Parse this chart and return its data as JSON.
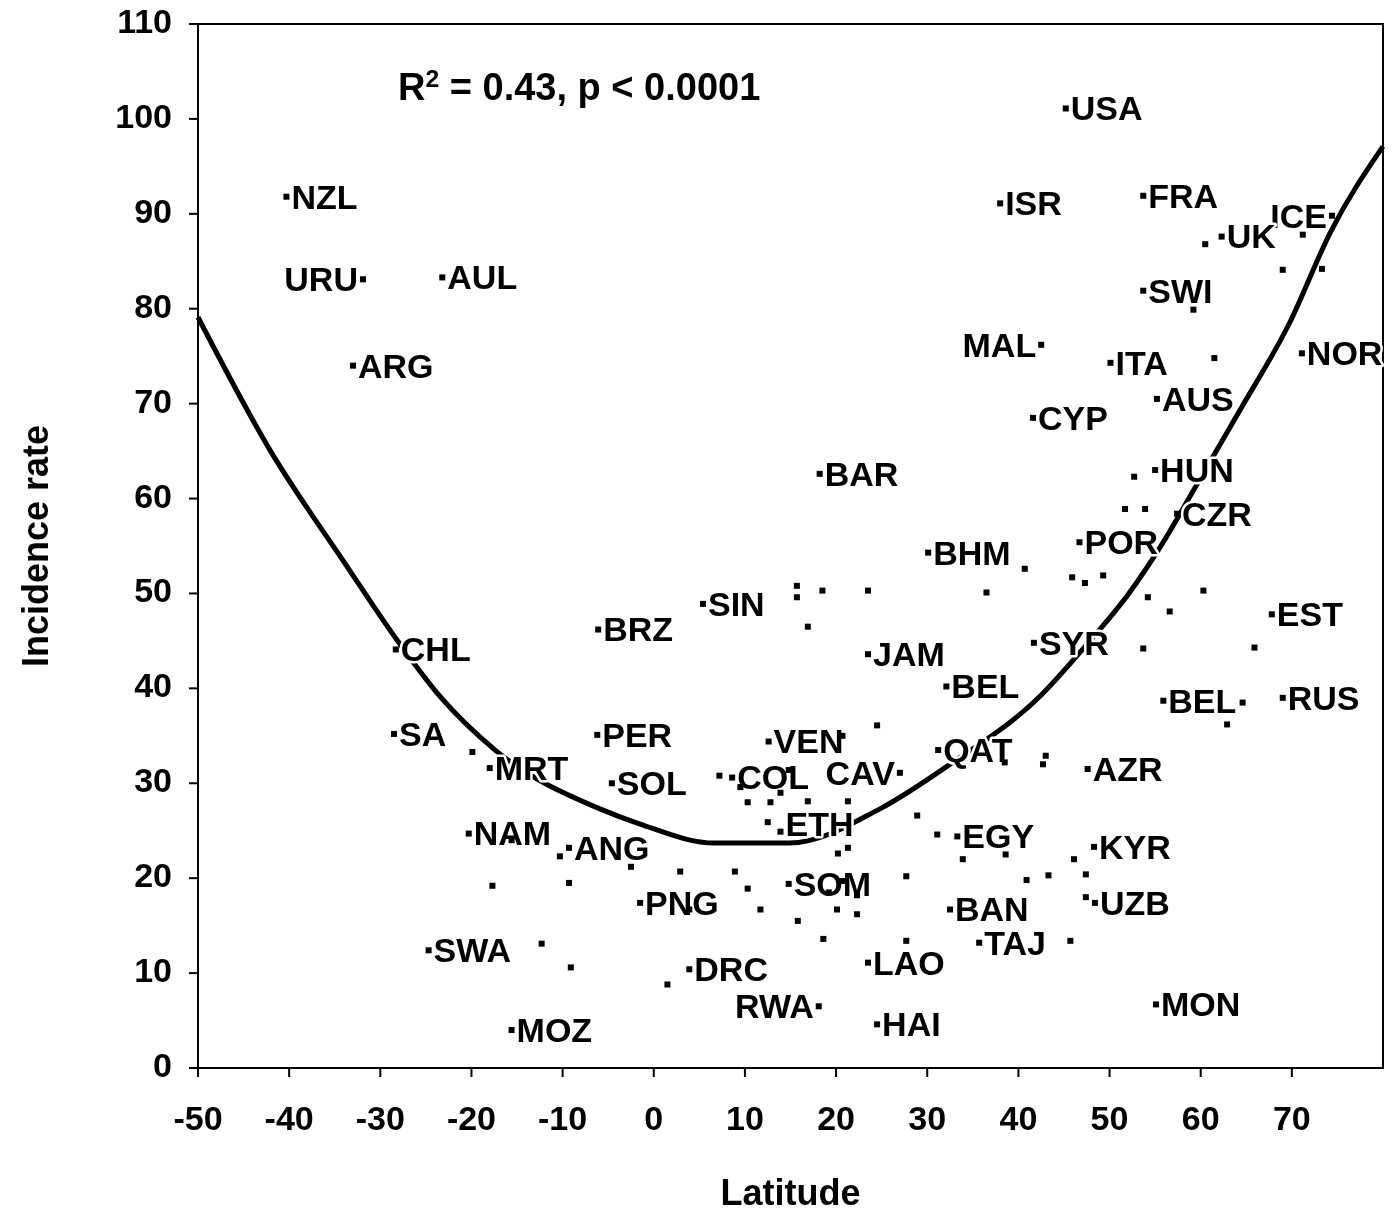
{
  "chart_data": {
    "type": "scatter",
    "xlabel": "Latitude",
    "ylabel": "Incidence rate",
    "xlim": [
      -50,
      80
    ],
    "ylim": [
      0,
      110
    ],
    "xticks": [
      -50,
      -40,
      -30,
      -20,
      -10,
      0,
      10,
      20,
      30,
      40,
      50,
      60,
      70
    ],
    "yticks": [
      0,
      10,
      20,
      30,
      40,
      50,
      60,
      70,
      80,
      90,
      100,
      110
    ],
    "grid": false,
    "marker": "square",
    "series": [
      {
        "color": "#000000",
        "x": [
          -40.3,
          -31.9,
          -23.2,
          -33.0,
          45.2,
          38.0,
          53.7,
          74.4,
          71.2,
          62.3,
          60.5,
          53.7,
          59.2,
          69.0,
          73.3,
          42.5,
          50.1,
          61.5,
          71.1,
          55.2,
          41.6,
          55.0,
          52.7,
          57.4,
          51.7,
          53.9,
          18.2,
          30.1,
          40.7,
          46.7,
          45.9,
          47.3,
          49.3,
          5.4,
          15.7,
          15.7,
          18.5,
          23.5,
          36.5,
          54.2,
          60.3,
          56.6,
          -6.1,
          16.9,
          67.8,
          23.5,
          41.7,
          53.7,
          65.9,
          -28.3,
          32.1,
          55.9,
          64.6,
          62.9,
          69.0,
          -28.5,
          -19.9,
          -18.0,
          -6.2,
          12.6,
          24.5,
          20.7,
          31.2,
          38.5,
          42.7,
          43.0,
          47.6,
          -4.6,
          8.6,
          7.2,
          9.5,
          14.8,
          13.9,
          10.3,
          12.8,
          16.9,
          21.3,
          27.0,
          13.9,
          12.5,
          21.3,
          28.9,
          31.1,
          33.3,
          33.9,
          38.6,
          46.1,
          48.3,
          -9.3,
          -10.3,
          -2.5,
          -9.3,
          -17.7,
          -20.3,
          -15.6,
          -1.5,
          2.9,
          8.9,
          10.3,
          11.7,
          3.9,
          14.8,
          20.2,
          20.7,
          19.2,
          22.3,
          20.1,
          22.3,
          27.7,
          15.8,
          18.6,
          18.1,
          32.5,
          40.9,
          43.3,
          23.5,
          27.7,
          35.7,
          45.7,
          24.5,
          3.9,
          1.5,
          -15.6,
          -24.7,
          -12.3,
          -9.1,
          48.4,
          47.4,
          47.4,
          55.1
        ],
        "values": [
          91.8,
          83.1,
          83.3,
          74.0,
          101.1,
          91.1,
          91.9,
          89.8,
          87.8,
          87.6,
          86.8,
          81.9,
          79.9,
          84.1,
          84.2,
          76.2,
          74.3,
          74.8,
          75.3,
          70.5,
          68.5,
          63.0,
          62.3,
          58.4,
          58.9,
          58.9,
          62.6,
          54.3,
          52.6,
          55.4,
          51.7,
          51.1,
          51.9,
          48.9,
          50.8,
          49.6,
          50.3,
          50.3,
          50.1,
          49.6,
          50.3,
          48.1,
          46.2,
          46.5,
          47.8,
          43.6,
          44.8,
          44.2,
          44.3,
          44.1,
          40.2,
          38.7,
          38.5,
          36.2,
          39.0,
          35.2,
          33.3,
          31.6,
          35.1,
          34.4,
          36.1,
          35.0,
          33.5,
          32.2,
          32.0,
          32.9,
          31.5,
          30.0,
          30.6,
          30.8,
          29.6,
          31.4,
          29.0,
          28.0,
          28.0,
          28.1,
          28.1,
          31.1,
          24.9,
          25.9,
          23.2,
          26.6,
          24.6,
          24.4,
          22.0,
          22.5,
          22.0,
          23.3,
          23.2,
          22.3,
          21.2,
          19.5,
          19.2,
          24.7,
          24.0,
          17.4,
          20.7,
          20.7,
          18.9,
          16.7,
          16.7,
          19.4,
          22.6,
          19.7,
          18.5,
          18.2,
          16.7,
          16.2,
          20.2,
          15.5,
          13.6,
          6.5,
          16.7,
          19.8,
          20.3,
          11.1,
          13.4,
          13.2,
          13.4,
          4.6,
          10.4,
          8.8,
          4.0,
          12.4,
          13.1,
          10.6,
          17.4,
          18.0,
          20.4,
          6.7
        ]
      },
      {
        "type": "line",
        "color": "#000000",
        "marker": "none",
        "line_style": "solid",
        "x": [
          -50,
          -42.1,
          -33.9,
          -28.4,
          -23.5,
          -17.4,
          -5.9,
          -1.5,
          6.7,
          14.9,
          24.8,
          32.5,
          42.4,
          47.3,
          52.2,
          55.5,
          59.9,
          64.3,
          69.8,
          74.2,
          80
        ],
        "values": [
          79.1,
          65.1,
          53.2,
          45.4,
          39.2,
          33.5,
          27.3,
          25.7,
          23.7,
          23.7,
          27.3,
          32.0,
          39.2,
          44.4,
          50.1,
          54.8,
          62.0,
          69.3,
          78.6,
          88.0,
          97.1
        ]
      }
    ],
    "annotations": [
      "R$^{2}$ = 0.43, p < 0.0001",
      {
        "text": "NZL",
        "x": -40.3,
        "y": 91.8
      },
      {
        "text": "URU",
        "x": -31.9,
        "y": 83.1
      },
      {
        "text": "AUL",
        "x": -23.2,
        "y": 83.3
      },
      {
        "text": "ARG",
        "x": -33.0,
        "y": 74.0
      },
      {
        "text": "USA",
        "x": 45.2,
        "y": 101.1
      },
      {
        "text": "ISR",
        "x": 38.0,
        "y": 91.1
      },
      {
        "text": "FRA",
        "x": 53.7,
        "y": 91.9
      },
      {
        "text": "ICE",
        "x": 74.4,
        "y": 89.8
      },
      {
        "text": "UK",
        "x": 62.3,
        "y": 87.6
      },
      {
        "text": "SWI",
        "x": 53.7,
        "y": 81.9
      },
      {
        "text": "MAL",
        "x": 42.5,
        "y": 76.2
      },
      {
        "text": "ITA",
        "x": 50.1,
        "y": 74.3
      },
      {
        "text": "NOR",
        "x": 71.1,
        "y": 75.3
      },
      {
        "text": "AUS",
        "x": 55.2,
        "y": 70.5
      },
      {
        "text": "CYP",
        "x": 41.6,
        "y": 68.5
      },
      {
        "text": "HUN",
        "x": 55.0,
        "y": 63.0
      },
      {
        "text": "CZR",
        "x": 57.4,
        "y": 58.4
      },
      {
        "text": "BAR",
        "x": 18.2,
        "y": 62.6
      },
      {
        "text": "BHM",
        "x": 30.1,
        "y": 54.3
      },
      {
        "text": "POR",
        "x": 46.7,
        "y": 55.4
      },
      {
        "text": "SIN",
        "x": 5.4,
        "y": 48.9
      },
      {
        "text": "BRZ",
        "x": -6.1,
        "y": 46.2
      },
      {
        "text": "EST",
        "x": 67.8,
        "y": 47.8
      },
      {
        "text": "JAM",
        "x": 23.5,
        "y": 43.6
      },
      {
        "text": "SYR",
        "x": 41.7,
        "y": 44.8
      },
      {
        "text": "CHL",
        "x": -28.3,
        "y": 44.1
      },
      {
        "text": "BEL",
        "x": 32.1,
        "y": 40.2
      },
      {
        "text": "BEL",
        "x": 55.9,
        "y": 38.7
      },
      {
        "text": "RUS",
        "x": 69.0,
        "y": 39.0
      },
      {
        "text": "SA",
        "x": -28.5,
        "y": 35.2
      },
      {
        "text": "MRT",
        "x": -18.0,
        "y": 31.6
      },
      {
        "text": "PER",
        "x": -6.2,
        "y": 35.1
      },
      {
        "text": "VEN",
        "x": 12.6,
        "y": 34.4
      },
      {
        "text": "QAT",
        "x": 31.2,
        "y": 33.5
      },
      {
        "text": "AZR",
        "x": 47.6,
        "y": 31.5
      },
      {
        "text": "SOL",
        "x": -4.6,
        "y": 30.0
      },
      {
        "text": "COL",
        "x": 8.6,
        "y": 30.6
      },
      {
        "text": "CAV",
        "x": 27.0,
        "y": 31.1
      },
      {
        "text": "ETH",
        "x": 13.9,
        "y": 24.9
      },
      {
        "text": "EGY",
        "x": 33.3,
        "y": 24.4
      },
      {
        "text": "KYR",
        "x": 48.3,
        "y": 23.3
      },
      {
        "text": "ANG",
        "x": -9.3,
        "y": 23.2
      },
      {
        "text": "NAM",
        "x": -20.3,
        "y": 24.7
      },
      {
        "text": "PNG",
        "x": -1.5,
        "y": 17.4
      },
      {
        "text": "SOM",
        "x": 14.8,
        "y": 19.4
      },
      {
        "text": "BAN",
        "x": 32.5,
        "y": 16.7
      },
      {
        "text": "LAO",
        "x": 23.5,
        "y": 11.1
      },
      {
        "text": "TAJ",
        "x": 35.7,
        "y": 13.2
      },
      {
        "text": "HAI",
        "x": 24.5,
        "y": 4.6
      },
      {
        "text": "DRC",
        "x": 3.9,
        "y": 10.4
      },
      {
        "text": "RWA",
        "x": 18.1,
        "y": 6.5
      },
      {
        "text": "MOZ",
        "x": -15.6,
        "y": 4.0
      },
      {
        "text": "SWA",
        "x": -24.7,
        "y": 12.4
      },
      {
        "text": "UZB",
        "x": 48.4,
        "y": 17.4
      },
      {
        "text": "MON",
        "x": 55.1,
        "y": 6.7
      }
    ]
  }
}
